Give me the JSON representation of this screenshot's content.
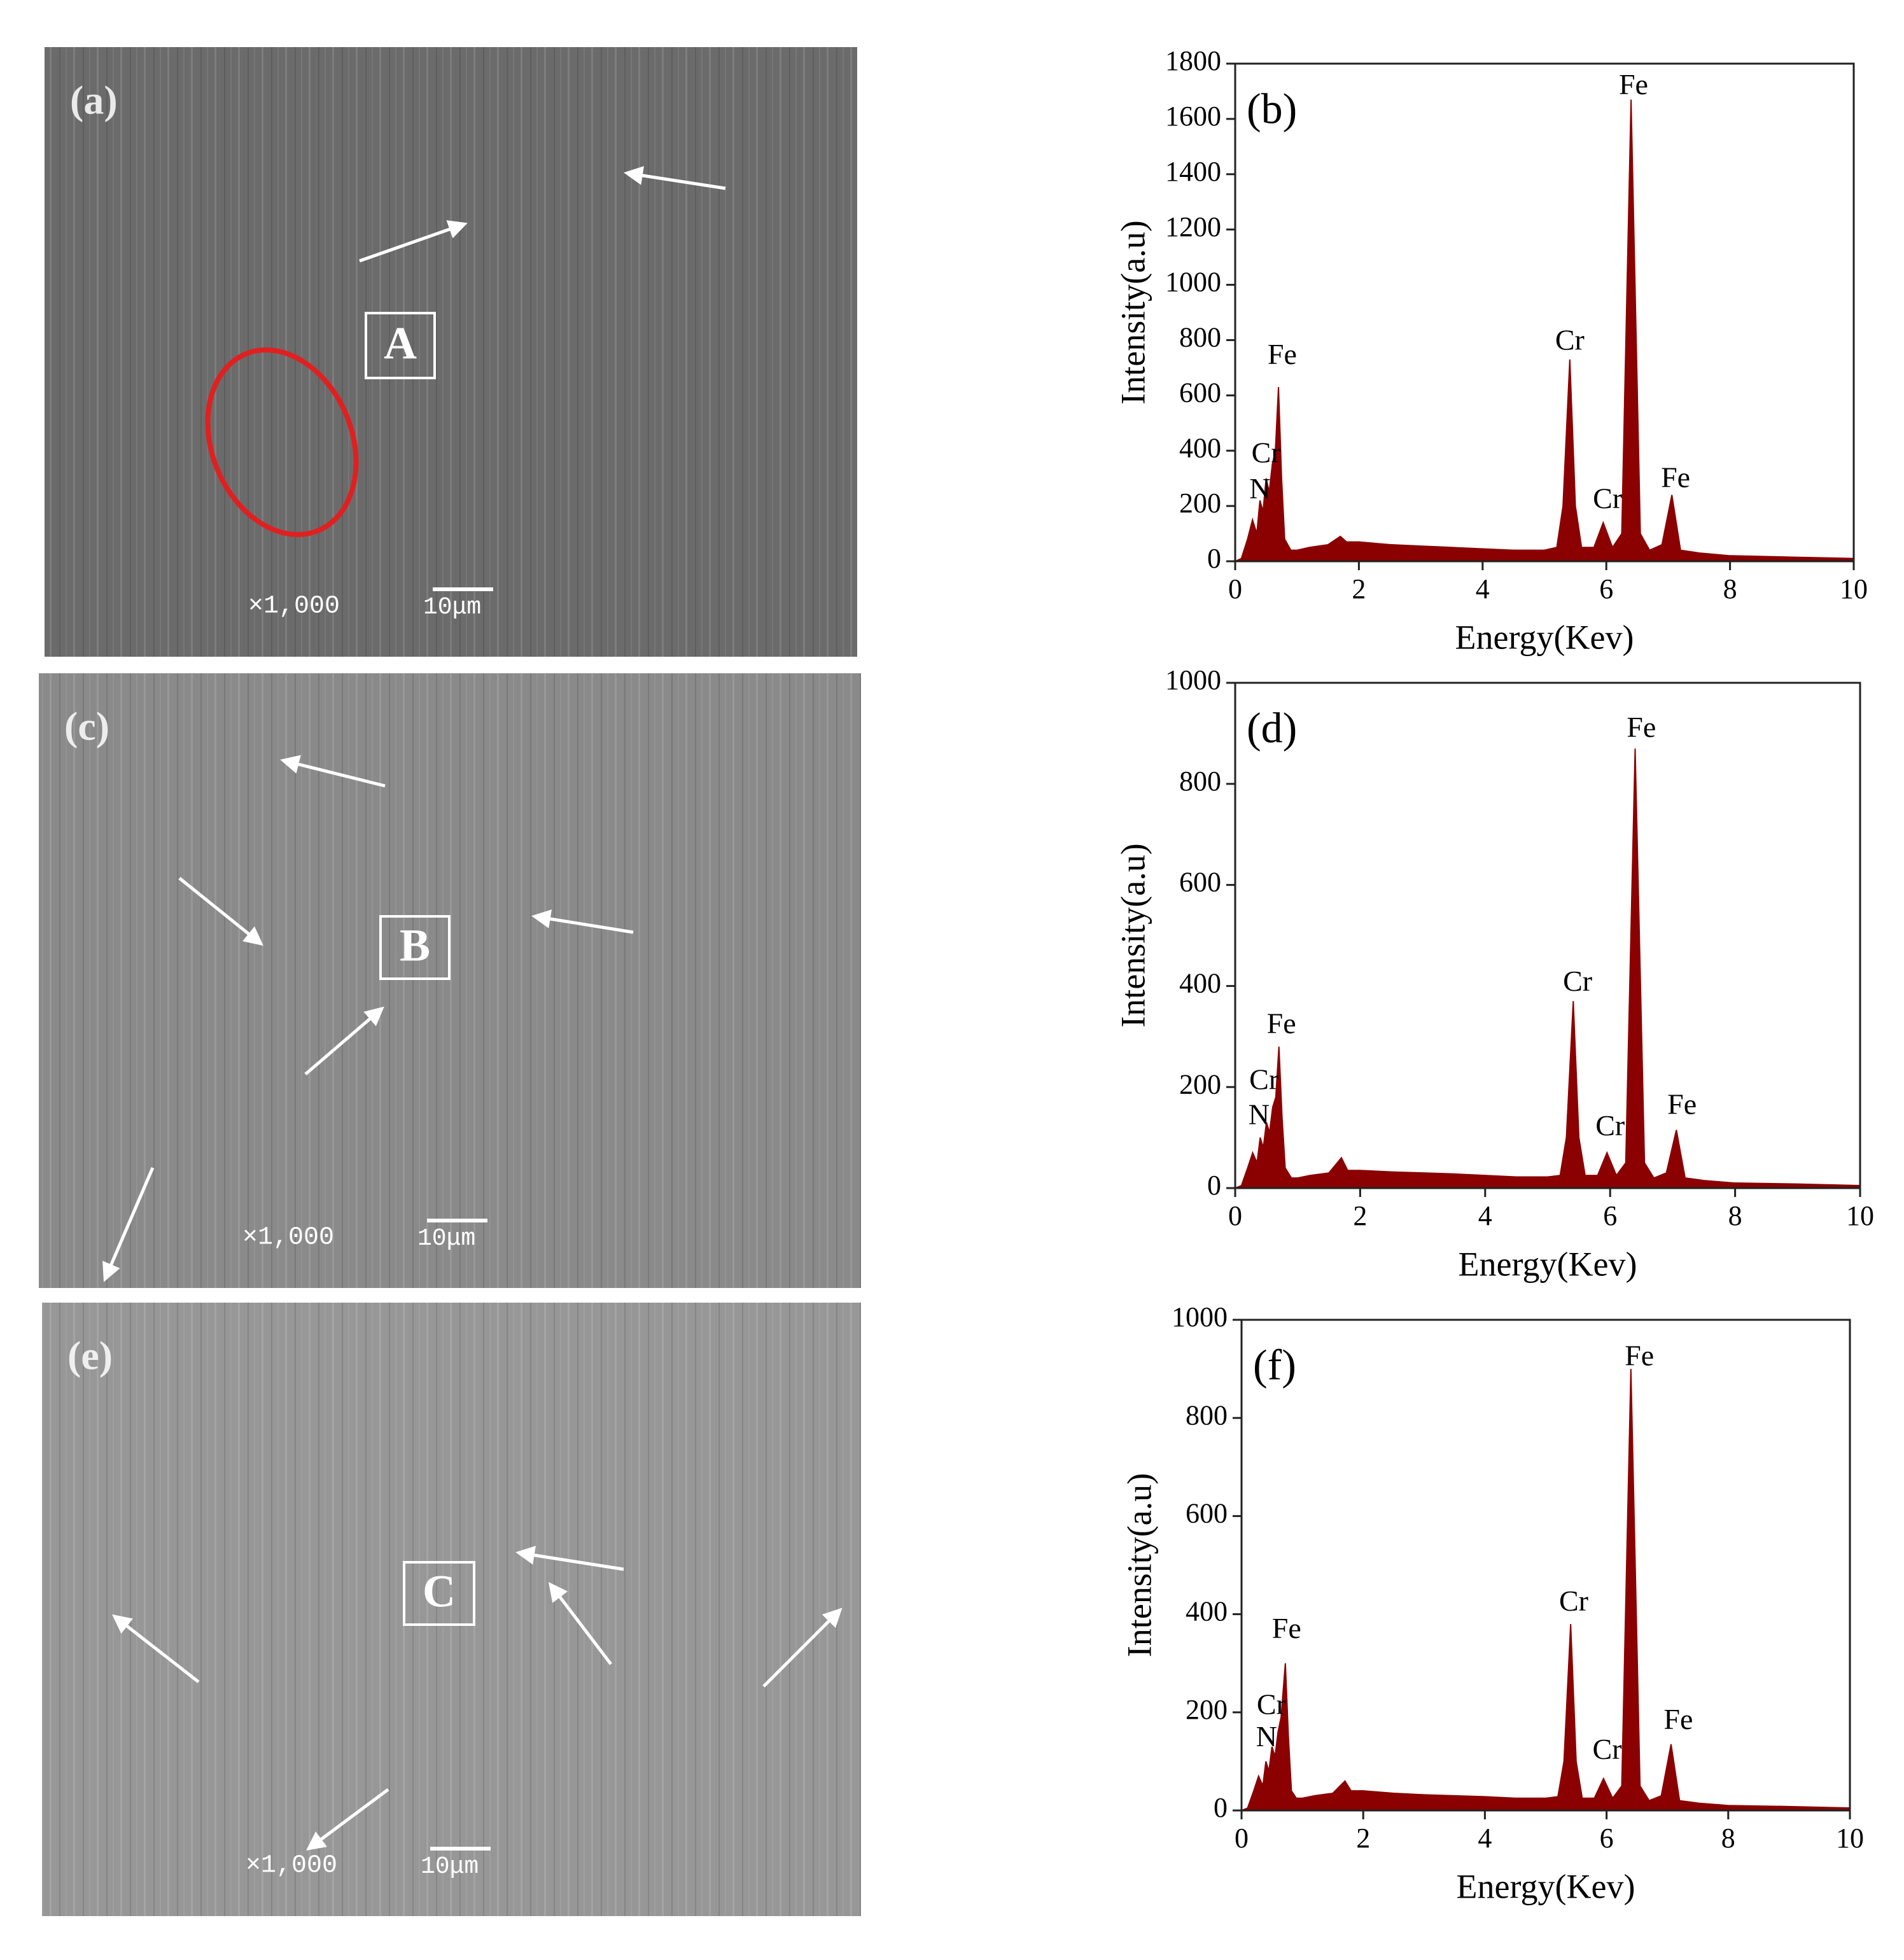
{
  "images": [
    {
      "panel_label": "(a)",
      "region_label": "A",
      "magnification": "×1,000",
      "scale_bar": "10μm"
    },
    {
      "panel_label": "(c)",
      "region_label": "B",
      "magnification": "×1,000",
      "scale_bar": "10μm"
    },
    {
      "panel_label": "(e)",
      "region_label": "C",
      "magnification": "×1,000",
      "scale_bar": "10μm"
    }
  ],
  "chart_data": [
    {
      "type": "area",
      "panel_label": "(b)",
      "xlabel": "Energy(Kev)",
      "ylabel": "Intensity(a.u)",
      "color": "#8b0000",
      "xlim": [
        0,
        10
      ],
      "ylim": [
        0,
        1800
      ],
      "xticks": [
        0,
        2,
        4,
        6,
        8,
        10
      ],
      "yticks": [
        0,
        200,
        400,
        600,
        800,
        1000,
        1200,
        1400,
        1600,
        1800
      ],
      "x": [
        0,
        0.1,
        0.2,
        0.28,
        0.35,
        0.4,
        0.45,
        0.5,
        0.55,
        0.6,
        0.65,
        0.7,
        0.75,
        0.8,
        0.9,
        1.0,
        1.2,
        1.5,
        1.7,
        1.8,
        2.0,
        2.5,
        3.0,
        3.5,
        4.0,
        4.5,
        5.0,
        5.2,
        5.3,
        5.41,
        5.5,
        5.6,
        5.8,
        5.95,
        6.1,
        6.25,
        6.4,
        6.55,
        6.7,
        6.9,
        7.06,
        7.2,
        7.5,
        8.0,
        9.0,
        10.0
      ],
      "values": [
        0,
        10,
        80,
        150,
        100,
        220,
        180,
        300,
        250,
        350,
        400,
        630,
        300,
        80,
        40,
        40,
        50,
        60,
        90,
        70,
        70,
        60,
        55,
        50,
        45,
        40,
        40,
        50,
        200,
        730,
        200,
        50,
        50,
        140,
        50,
        100,
        1670,
        100,
        40,
        60,
        240,
        40,
        30,
        20,
        15,
        10
      ],
      "annotations": [
        {
          "text": "Fe",
          "x": 0.76,
          "y": 738
        },
        {
          "text": "Cr",
          "x": 0.5,
          "y": 382
        },
        {
          "text": "N",
          "x": 0.4,
          "y": 252
        },
        {
          "text": "Cr",
          "x": 5.41,
          "y": 790
        },
        {
          "text": "Fe",
          "x": 6.44,
          "y": 1714
        },
        {
          "text": "Cr",
          "x": 6.02,
          "y": 216
        },
        {
          "text": "Fe",
          "x": 7.12,
          "y": 292
        }
      ]
    },
    {
      "type": "area",
      "panel_label": "(d)",
      "xlabel": "Energy(Kev)",
      "ylabel": "Intensity(a.u)",
      "color": "#8b0000",
      "xlim": [
        0,
        10
      ],
      "ylim": [
        0,
        1000
      ],
      "xticks": [
        0,
        2,
        4,
        6,
        8,
        10
      ],
      "yticks": [
        0,
        200,
        400,
        600,
        800,
        1000
      ],
      "x": [
        0,
        0.1,
        0.2,
        0.28,
        0.35,
        0.4,
        0.45,
        0.5,
        0.55,
        0.6,
        0.65,
        0.7,
        0.75,
        0.8,
        0.9,
        1.0,
        1.2,
        1.5,
        1.7,
        1.8,
        2.0,
        2.5,
        3.0,
        3.5,
        4.0,
        4.5,
        5.0,
        5.2,
        5.3,
        5.41,
        5.5,
        5.6,
        5.8,
        5.95,
        6.1,
        6.25,
        6.4,
        6.55,
        6.7,
        6.9,
        7.06,
        7.2,
        7.5,
        8.0,
        9.0,
        10.0
      ],
      "values": [
        0,
        5,
        40,
        70,
        50,
        100,
        80,
        130,
        110,
        160,
        180,
        280,
        140,
        40,
        20,
        20,
        25,
        30,
        60,
        35,
        35,
        32,
        30,
        28,
        25,
        22,
        22,
        25,
        100,
        370,
        100,
        25,
        25,
        70,
        25,
        50,
        870,
        50,
        20,
        30,
        115,
        20,
        15,
        10,
        8,
        5
      ],
      "annotations": [
        {
          "text": "Fe",
          "x": 0.74,
          "y": 320
        },
        {
          "text": "Cr",
          "x": 0.46,
          "y": 209
        },
        {
          "text": "N",
          "x": 0.38,
          "y": 140
        },
        {
          "text": "Cr",
          "x": 5.48,
          "y": 404
        },
        {
          "text": "Fe",
          "x": 6.5,
          "y": 906
        },
        {
          "text": "Cr",
          "x": 6.0,
          "y": 118
        },
        {
          "text": "Fe",
          "x": 7.15,
          "y": 160
        }
      ]
    },
    {
      "type": "area",
      "panel_label": "(f)",
      "xlabel": "Energy(Kev)",
      "ylabel": "Intensity(a.u)",
      "color": "#8b0000",
      "xlim": [
        0,
        10
      ],
      "ylim": [
        0,
        1000
      ],
      "xticks": [
        0,
        2,
        4,
        6,
        8,
        10
      ],
      "yticks": [
        0,
        200,
        400,
        600,
        800,
        1000
      ],
      "x": [
        0,
        0.1,
        0.2,
        0.28,
        0.35,
        0.4,
        0.45,
        0.5,
        0.55,
        0.6,
        0.65,
        0.72,
        0.77,
        0.82,
        0.9,
        1.0,
        1.2,
        1.5,
        1.7,
        1.8,
        2.0,
        2.5,
        3.0,
        3.5,
        4.0,
        4.5,
        5.0,
        5.2,
        5.3,
        5.41,
        5.5,
        5.6,
        5.8,
        5.95,
        6.1,
        6.25,
        6.4,
        6.55,
        6.7,
        6.9,
        7.06,
        7.2,
        7.5,
        8.0,
        9.0,
        10.0
      ],
      "values": [
        0,
        5,
        40,
        70,
        50,
        100,
        80,
        130,
        110,
        160,
        190,
        300,
        150,
        40,
        25,
        25,
        30,
        35,
        60,
        40,
        40,
        35,
        32,
        30,
        28,
        25,
        25,
        28,
        100,
        380,
        100,
        25,
        25,
        65,
        25,
        50,
        900,
        50,
        20,
        30,
        135,
        20,
        15,
        10,
        8,
        5
      ],
      "annotations": [
        {
          "text": "Fe",
          "x": 0.74,
          "y": 365
        },
        {
          "text": "Cr",
          "x": 0.49,
          "y": 210
        },
        {
          "text": "N",
          "x": 0.41,
          "y": 145
        },
        {
          "text": "Cr",
          "x": 5.46,
          "y": 421
        },
        {
          "text": "Fe",
          "x": 6.54,
          "y": 921
        },
        {
          "text": "Cr",
          "x": 6.01,
          "y": 119
        },
        {
          "text": "Fe",
          "x": 7.18,
          "y": 180
        }
      ]
    }
  ]
}
